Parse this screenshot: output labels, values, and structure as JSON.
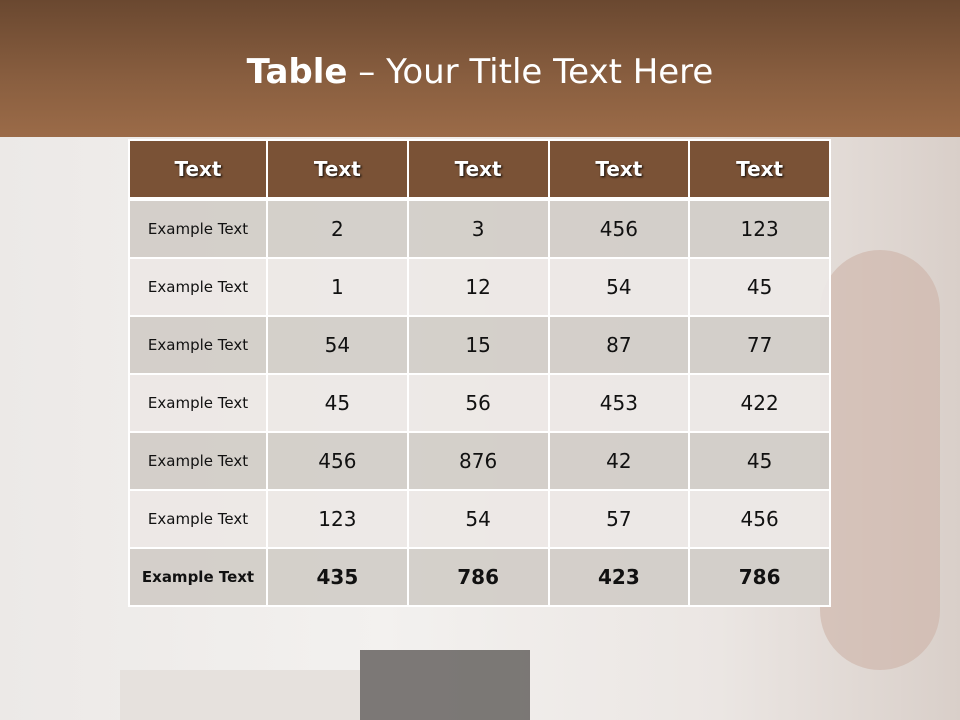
{
  "title": {
    "bold": "Table",
    "rest": " – Your Title Text Here"
  },
  "colors": {
    "header_bar": "#8a5f40",
    "table_header": "#7a5236",
    "row_odd": "#d4cfcb",
    "row_even": "#ece8e6"
  },
  "table": {
    "headers": [
      "Text",
      "Text",
      "Text",
      "Text",
      "Text"
    ],
    "rows": [
      [
        "Example Text",
        "2",
        "3",
        "456",
        "123"
      ],
      [
        "Example Text",
        "1",
        "12",
        "54",
        "45"
      ],
      [
        "Example Text",
        "54",
        "15",
        "87",
        "77"
      ],
      [
        "Example Text",
        "45",
        "56",
        "453",
        "422"
      ],
      [
        "Example Text",
        "456",
        "876",
        "42",
        "45"
      ],
      [
        "Example Text",
        "123",
        "54",
        "57",
        "456"
      ],
      [
        "Example Text",
        "435",
        "786",
        "423",
        "786"
      ]
    ]
  }
}
